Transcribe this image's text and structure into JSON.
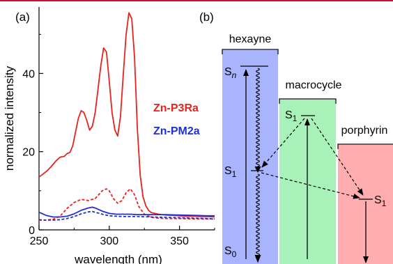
{
  "panel_labels": {
    "a": "(a)",
    "b": "(b)"
  },
  "colors": {
    "p3ra": "#e8211b",
    "pm2a": "#1f2fd6",
    "hexayne_box": "#a9b4ff",
    "macrocycle_box": "#a8f2b9",
    "porphyrin_box": "#ffadaf",
    "frame": "#c8102e"
  },
  "chart_data": [
    {
      "type": "line",
      "title": "",
      "xlabel": "wavelength (nm)",
      "ylabel": "normalized intensity",
      "xlim": [
        250,
        375
      ],
      "ylim": [
        0,
        57
      ],
      "xticks": [
        250,
        300,
        350
      ],
      "yticks": [
        0,
        20,
        40
      ],
      "grid": false,
      "legend": {
        "placement": "right-middle",
        "entries": [
          "Zn-P3Ra",
          "Zn-PM2a"
        ]
      },
      "series": [
        {
          "name": "Zn-P3Ra",
          "color": "#e8211b",
          "style": "solid",
          "x": [
            250,
            253,
            256,
            259,
            262,
            265,
            268,
            270,
            272,
            274,
            276,
            278,
            280,
            282,
            284,
            286,
            288,
            290,
            292,
            294,
            296,
            298,
            300,
            302,
            304,
            306,
            308,
            310,
            312,
            314,
            316,
            318,
            320,
            322,
            324,
            326,
            328,
            330,
            335,
            340,
            345,
            350,
            355,
            360,
            365,
            370,
            375
          ],
          "y": [
            13.5,
            14.3,
            15.2,
            16.3,
            17.6,
            18.6,
            18.8,
            19.5,
            19.8,
            21.5,
            25.0,
            28.5,
            30.5,
            30.0,
            28.0,
            25.5,
            26.5,
            30.0,
            36.0,
            42.0,
            46.5,
            45.5,
            38.0,
            30.0,
            25.5,
            24.0,
            29.0,
            40.0,
            50.0,
            55.5,
            54.0,
            44.0,
            26.0,
            14.0,
            8.5,
            6.2,
            5.0,
            4.4,
            4.0,
            3.8,
            3.7,
            3.6,
            3.5,
            3.5,
            3.4,
            3.4,
            3.3
          ]
        },
        {
          "name": "",
          "color": "#e8211b",
          "style": "dashed",
          "x": [
            250,
            255,
            260,
            265,
            270,
            275,
            280,
            285,
            290,
            295,
            298,
            300,
            303,
            306,
            309,
            312,
            315,
            318,
            321,
            325,
            330,
            335,
            340,
            350,
            360,
            370,
            375
          ],
          "y": [
            2.5,
            2.5,
            2.7,
            3.5,
            5.5,
            7.0,
            7.8,
            7.5,
            8.0,
            10.0,
            10.5,
            10.0,
            8.0,
            6.8,
            7.5,
            9.5,
            10.5,
            9.0,
            6.0,
            4.0,
            3.2,
            3.0,
            2.9,
            2.9,
            2.8,
            2.8,
            2.8
          ]
        },
        {
          "name": "Zn-PM2a",
          "color": "#1f2fd6",
          "style": "solid",
          "x": [
            250,
            255,
            260,
            265,
            270,
            275,
            280,
            285,
            288,
            290,
            295,
            300,
            305,
            310,
            315,
            320,
            325,
            330,
            340,
            350,
            360,
            370,
            375
          ],
          "y": [
            4.5,
            3.7,
            3.3,
            3.3,
            3.5,
            4.1,
            5.0,
            5.6,
            5.8,
            5.6,
            4.8,
            4.2,
            4.0,
            4.0,
            4.0,
            3.9,
            3.9,
            3.9,
            3.9,
            3.8,
            3.7,
            3.6,
            3.6
          ]
        },
        {
          "name": "",
          "color": "#1f2fd6",
          "style": "dashed",
          "x": [
            250,
            255,
            260,
            265,
            270,
            275,
            280,
            285,
            288,
            290,
            295,
            300,
            305,
            310,
            315,
            320,
            330,
            340,
            350,
            360,
            370,
            375
          ],
          "y": [
            2.6,
            2.5,
            2.5,
            2.6,
            2.9,
            3.4,
            4.1,
            4.6,
            4.7,
            4.5,
            4.0,
            3.6,
            3.5,
            3.4,
            3.4,
            3.4,
            3.3,
            3.2,
            3.1,
            3.0,
            2.9,
            2.8
          ]
        }
      ]
    },
    {
      "type": "diagram",
      "title": "",
      "boxes": [
        {
          "name": "hexayne",
          "label": "hexayne",
          "level": 1.0
        },
        {
          "name": "macrocycle",
          "label": "macrocycle",
          "level": 0.8
        },
        {
          "name": "porphyrin",
          "label": "porphyrin",
          "level": 0.57
        }
      ],
      "states": [
        {
          "box": "hexayne",
          "label": "S",
          "subscript": "n"
        },
        {
          "box": "hexayne",
          "label": "S",
          "subscript": "1"
        },
        {
          "box": "hexayne",
          "label": "S",
          "subscript": "0"
        },
        {
          "box": "macrocycle",
          "label": "S",
          "subscript": "1"
        },
        {
          "box": "porphyrin",
          "label": "S",
          "subscript": "1"
        }
      ],
      "transitions": [
        {
          "from": "hexayne S0",
          "to": "hexayne Sn",
          "kind": "absorption"
        },
        {
          "from": "hexayne Sn",
          "to": "hexayne S1",
          "kind": "internal conversion"
        },
        {
          "from": "hexayne S1",
          "to": "hexayne S0",
          "kind": "nonradiative"
        },
        {
          "from": "macrocycle S1",
          "to": "hexayne S1",
          "kind": "energy transfer"
        },
        {
          "from": "macrocycle S1",
          "to": "porphyrin S1",
          "kind": "energy transfer"
        },
        {
          "from": "hexayne S1",
          "to": "porphyrin S1",
          "kind": "energy transfer"
        },
        {
          "from": "macrocycle ground",
          "to": "macrocycle S1",
          "kind": "absorption"
        },
        {
          "from": "porphyrin S1",
          "to": "porphyrin ground",
          "kind": "emission"
        }
      ]
    }
  ]
}
